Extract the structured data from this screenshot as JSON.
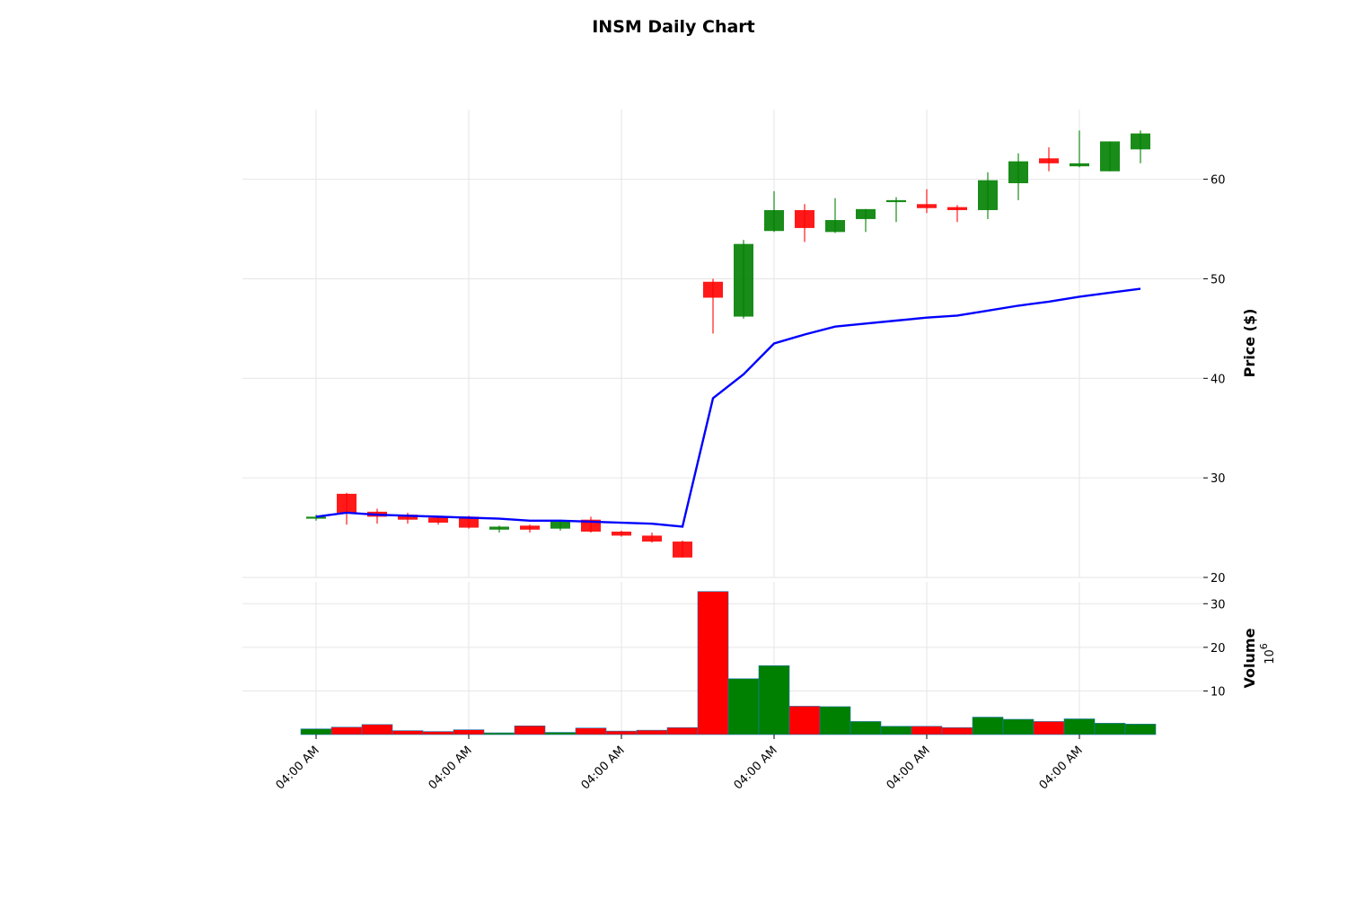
{
  "colors": {
    "up": "#008000",
    "down": "#ff0000",
    "ma": "#0000ff",
    "grid": "#e6e6e6"
  },
  "chart_data": {
    "type": "candlestick",
    "title": "INSM Daily Chart",
    "price_axis": {
      "label": "Price ($)",
      "ticks": [
        20,
        30,
        40,
        50,
        60
      ],
      "ylim": [
        20,
        67
      ]
    },
    "volume_axis": {
      "label": "Volume",
      "exponent_base": "10",
      "exponent_power": "6",
      "ticks": [
        10,
        20,
        30
      ],
      "ylim": [
        0,
        35
      ]
    },
    "x_tick_labels": [
      "04:00 AM",
      "04:00 AM",
      "04:00 AM",
      "04:00 AM",
      "04:00 AM",
      "04:00 AM"
    ],
    "x_tick_indices": [
      0,
      5,
      10,
      15,
      20,
      25
    ],
    "grid": true,
    "candles": [
      {
        "o": 25.9,
        "h": 26.3,
        "l": 25.7,
        "c": 26.1,
        "v": 1.3
      },
      {
        "o": 28.4,
        "h": 28.5,
        "l": 25.3,
        "c": 26.5,
        "v": 1.7
      },
      {
        "o": 26.6,
        "h": 26.9,
        "l": 25.4,
        "c": 26.1,
        "v": 2.3
      },
      {
        "o": 26.3,
        "h": 26.5,
        "l": 25.4,
        "c": 25.8,
        "v": 0.9
      },
      {
        "o": 26.0,
        "h": 26.1,
        "l": 25.3,
        "c": 25.5,
        "v": 0.7
      },
      {
        "o": 26.1,
        "h": 26.2,
        "l": 24.9,
        "c": 25.0,
        "v": 1.1
      },
      {
        "o": 24.8,
        "h": 25.2,
        "l": 24.5,
        "c": 25.1,
        "v": 0.4
      },
      {
        "o": 25.2,
        "h": 25.3,
        "l": 24.5,
        "c": 24.8,
        "v": 2.0
      },
      {
        "o": 24.9,
        "h": 25.8,
        "l": 24.7,
        "c": 25.7,
        "v": 0.5
      },
      {
        "o": 25.8,
        "h": 26.1,
        "l": 24.5,
        "c": 24.6,
        "v": 1.5
      },
      {
        "o": 24.6,
        "h": 24.7,
        "l": 24.1,
        "c": 24.2,
        "v": 0.8
      },
      {
        "o": 24.2,
        "h": 24.5,
        "l": 23.5,
        "c": 23.6,
        "v": 1.0
      },
      {
        "o": 23.6,
        "h": 23.7,
        "l": 22.0,
        "c": 22.0,
        "v": 1.6
      },
      {
        "o": 49.7,
        "h": 50.0,
        "l": 44.5,
        "c": 48.1,
        "v": 32.8
      },
      {
        "o": 46.2,
        "h": 53.9,
        "l": 46.0,
        "c": 53.5,
        "v": 12.8
      },
      {
        "o": 54.8,
        "h": 58.8,
        "l": 54.7,
        "c": 56.9,
        "v": 15.8
      },
      {
        "o": 56.9,
        "h": 57.5,
        "l": 53.7,
        "c": 55.1,
        "v": 6.5
      },
      {
        "o": 54.7,
        "h": 58.1,
        "l": 54.6,
        "c": 55.9,
        "v": 6.4
      },
      {
        "o": 56.0,
        "h": 57.0,
        "l": 54.7,
        "c": 57.0,
        "v": 3.0
      },
      {
        "o": 57.7,
        "h": 58.2,
        "l": 55.7,
        "c": 57.9,
        "v": 1.9
      },
      {
        "o": 57.5,
        "h": 59.0,
        "l": 56.6,
        "c": 57.1,
        "v": 1.9
      },
      {
        "o": 57.2,
        "h": 57.4,
        "l": 55.7,
        "c": 56.9,
        "v": 1.6
      },
      {
        "o": 56.9,
        "h": 60.7,
        "l": 56.0,
        "c": 59.9,
        "v": 4.0
      },
      {
        "o": 59.6,
        "h": 62.6,
        "l": 57.9,
        "c": 61.8,
        "v": 3.5
      },
      {
        "o": 62.1,
        "h": 63.2,
        "l": 60.8,
        "c": 61.6,
        "v": 3.0
      },
      {
        "o": 61.3,
        "h": 64.9,
        "l": 61.2,
        "c": 61.6,
        "v": 3.6
      },
      {
        "o": 60.8,
        "h": 63.8,
        "l": 60.8,
        "c": 63.8,
        "v": 2.6
      },
      {
        "o": 63.0,
        "h": 64.9,
        "l": 61.6,
        "c": 64.6,
        "v": 2.4
      }
    ],
    "ma_series": [
      26.1,
      26.5,
      26.3,
      26.2,
      26.1,
      26.0,
      25.9,
      25.7,
      25.7,
      25.6,
      25.5,
      25.4,
      25.1,
      38.0,
      40.4,
      43.5,
      44.4,
      45.2,
      45.5,
      45.8,
      46.1,
      46.3,
      46.8,
      47.3,
      47.7,
      48.2,
      48.6,
      49.0
    ]
  }
}
